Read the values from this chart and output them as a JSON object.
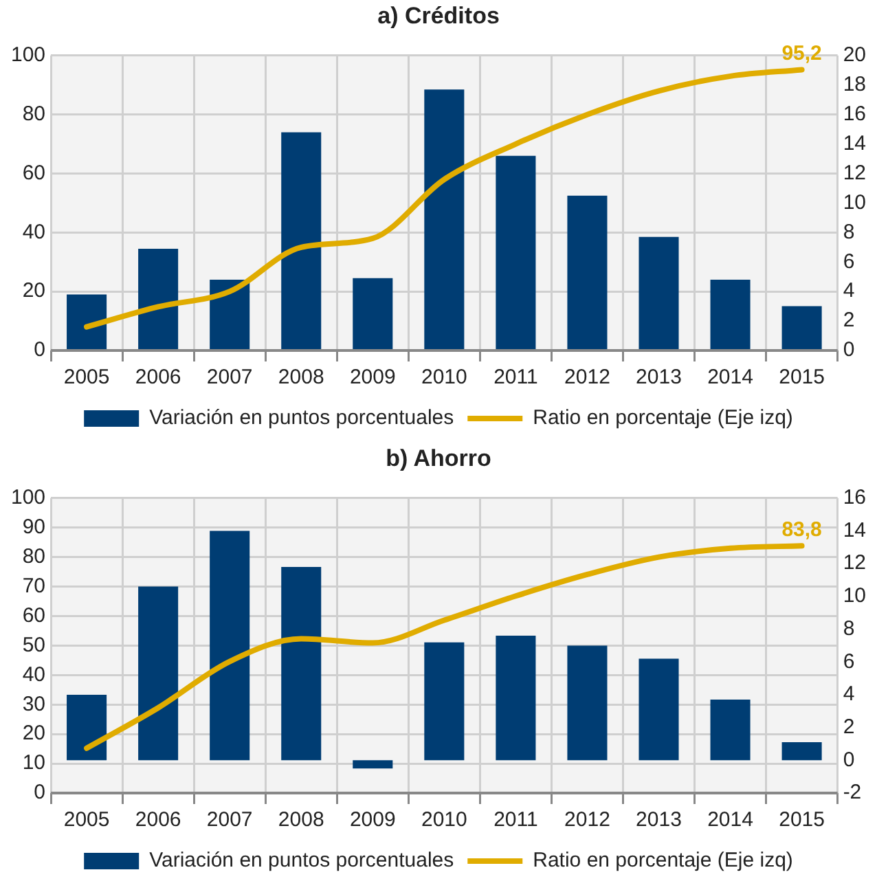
{
  "chart_data": [
    {
      "type": "bar",
      "title": "a) Créditos",
      "categories": [
        "2005",
        "2006",
        "2007",
        "2008",
        "2009",
        "2010",
        "2011",
        "2012",
        "2013",
        "2014",
        "2015"
      ],
      "series": [
        {
          "name": "Variación en puntos porcentuales",
          "axis": "y2",
          "color": "#003d73",
          "values": [
            3.8,
            6.9,
            4.8,
            14.8,
            4.9,
            17.7,
            13.2,
            10.5,
            7.7,
            4.8,
            3.0
          ]
        },
        {
          "name": "Ratio en porcentaje (Eje izq)",
          "type": "line",
          "axis": "y",
          "color": "#e0ac00",
          "values": [
            8,
            14.8,
            20,
            35,
            38,
            58,
            70,
            80,
            88,
            93,
            95.2
          ]
        }
      ],
      "ylim": [
        0,
        100
      ],
      "yticks": [
        0,
        20,
        40,
        60,
        80,
        100
      ],
      "y2lim": [
        0,
        20
      ],
      "y2ticks": [
        0,
        2,
        4,
        6,
        8,
        10,
        12,
        14,
        16,
        18,
        20
      ],
      "annotations": [
        {
          "text": "95,2",
          "x": "2015",
          "y": 95.2
        }
      ],
      "grid": true,
      "legend": "bottom",
      "marker": "none"
    },
    {
      "type": "bar",
      "title": "b) Ahorro",
      "categories": [
        "2005",
        "2006",
        "2007",
        "2008",
        "2009",
        "2010",
        "2011",
        "2012",
        "2013",
        "2014",
        "2015"
      ],
      "series": [
        {
          "name": "Variación en puntos porcentuales",
          "axis": "y2",
          "color": "#003d73",
          "values": [
            4.0,
            10.6,
            14.0,
            11.8,
            -0.5,
            7.2,
            7.6,
            7.0,
            6.2,
            3.7,
            1.1
          ]
        },
        {
          "name": "Ratio en porcentaje (Eje izq)",
          "type": "line",
          "axis": "y",
          "color": "#e0ac00",
          "values": [
            15.2,
            28.9,
            44.6,
            52.3,
            50.9,
            58.6,
            66.8,
            74.1,
            80,
            83,
            83.8
          ]
        }
      ],
      "ylim": [
        0,
        100
      ],
      "yticks": [
        0,
        10,
        20,
        30,
        40,
        50,
        60,
        70,
        80,
        90,
        100
      ],
      "y2lim": [
        -2,
        16
      ],
      "y2ticks": [
        -2,
        0,
        2,
        4,
        6,
        8,
        10,
        12,
        14,
        16
      ],
      "annotations": [
        {
          "text": "83,8",
          "x": "2015",
          "y": 83.8
        }
      ],
      "grid": true,
      "legend": "bottom",
      "marker": "none"
    }
  ]
}
